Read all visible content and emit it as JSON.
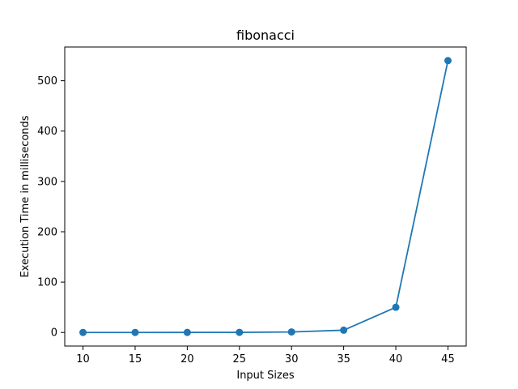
{
  "chart_data": {
    "type": "line",
    "title": "fibonacci",
    "xlabel": "Input Sizes",
    "ylabel": "Execution Time in milliseconds",
    "x": [
      10,
      15,
      20,
      25,
      30,
      35,
      40,
      45
    ],
    "series": [
      {
        "values": [
          0.0,
          0.0,
          0.1,
          0.2,
          1.0,
          4.5,
          50,
          540
        ],
        "color": "#1f77b4",
        "marker": "circle"
      }
    ],
    "xticks": [
      "10",
      "15",
      "20",
      "25",
      "30",
      "35",
      "40",
      "45"
    ],
    "yticks": [
      "0",
      "100",
      "200",
      "300",
      "400",
      "500"
    ],
    "xlim": [
      8.25,
      46.75
    ],
    "ylim": [
      -27,
      567
    ],
    "grid": false,
    "legend": "none"
  }
}
